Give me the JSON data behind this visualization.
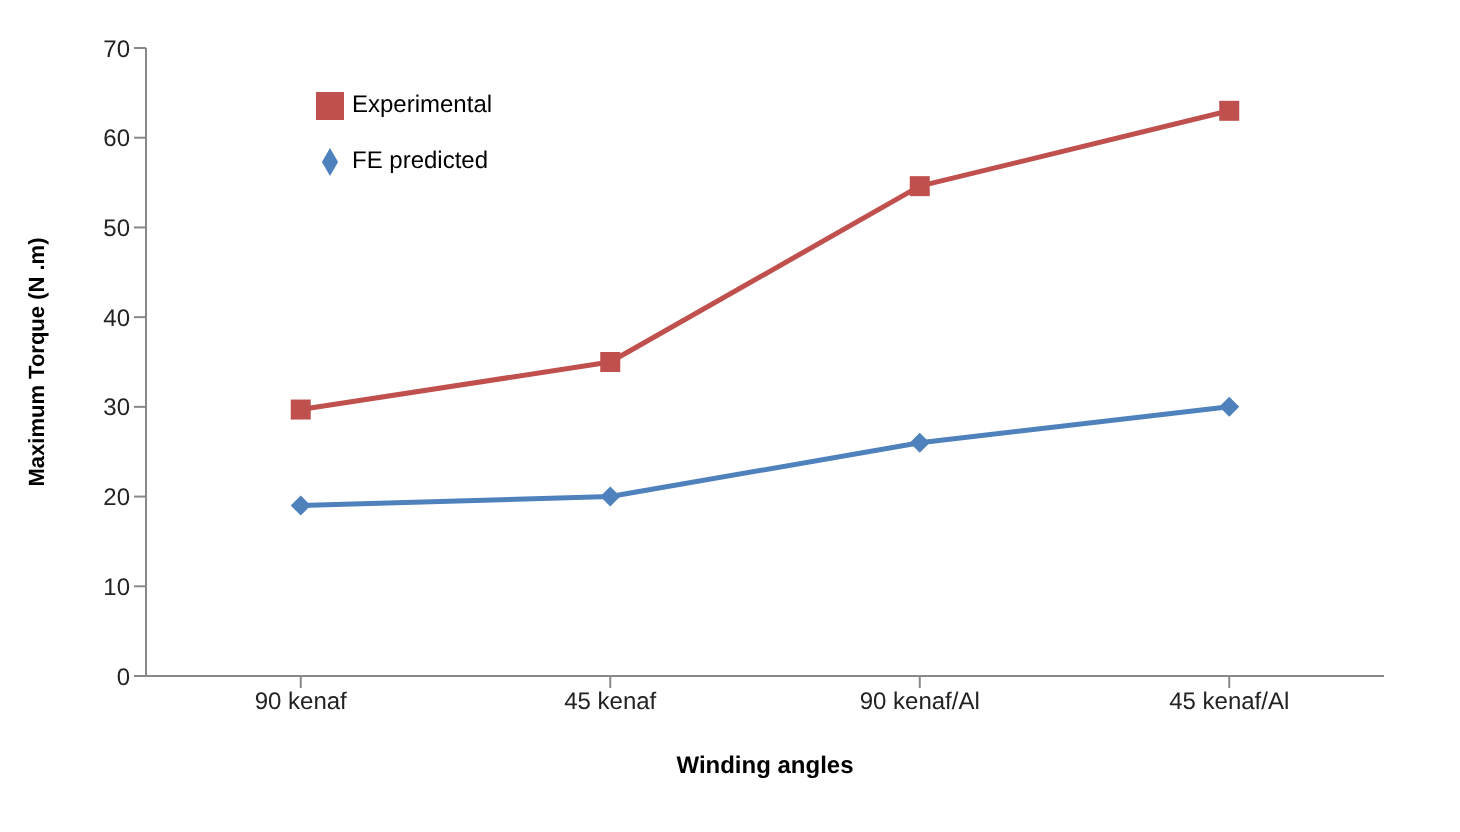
{
  "chart_data": {
    "type": "line",
    "xlabel": "Winding angles",
    "ylabel": "Maximum Torque (N .m)",
    "categories": [
      "90 kenaf",
      "45 kenaf",
      "90 kenaf/Al",
      "45 kenaf/Al"
    ],
    "series": [
      {
        "name": "Experimental",
        "color": "#c0504d",
        "marker": "square",
        "values": [
          29.7,
          35,
          54.6,
          63
        ]
      },
      {
        "name": "FE predicted",
        "color": "#4f81bd",
        "marker": "diamond",
        "values": [
          19,
          20,
          26,
          30
        ]
      }
    ],
    "ylim": [
      0,
      70
    ],
    "yticks": [
      0,
      10,
      20,
      30,
      40,
      50,
      60,
      70
    ],
    "grid": false,
    "legend": "top left",
    "line_style": "solid"
  }
}
